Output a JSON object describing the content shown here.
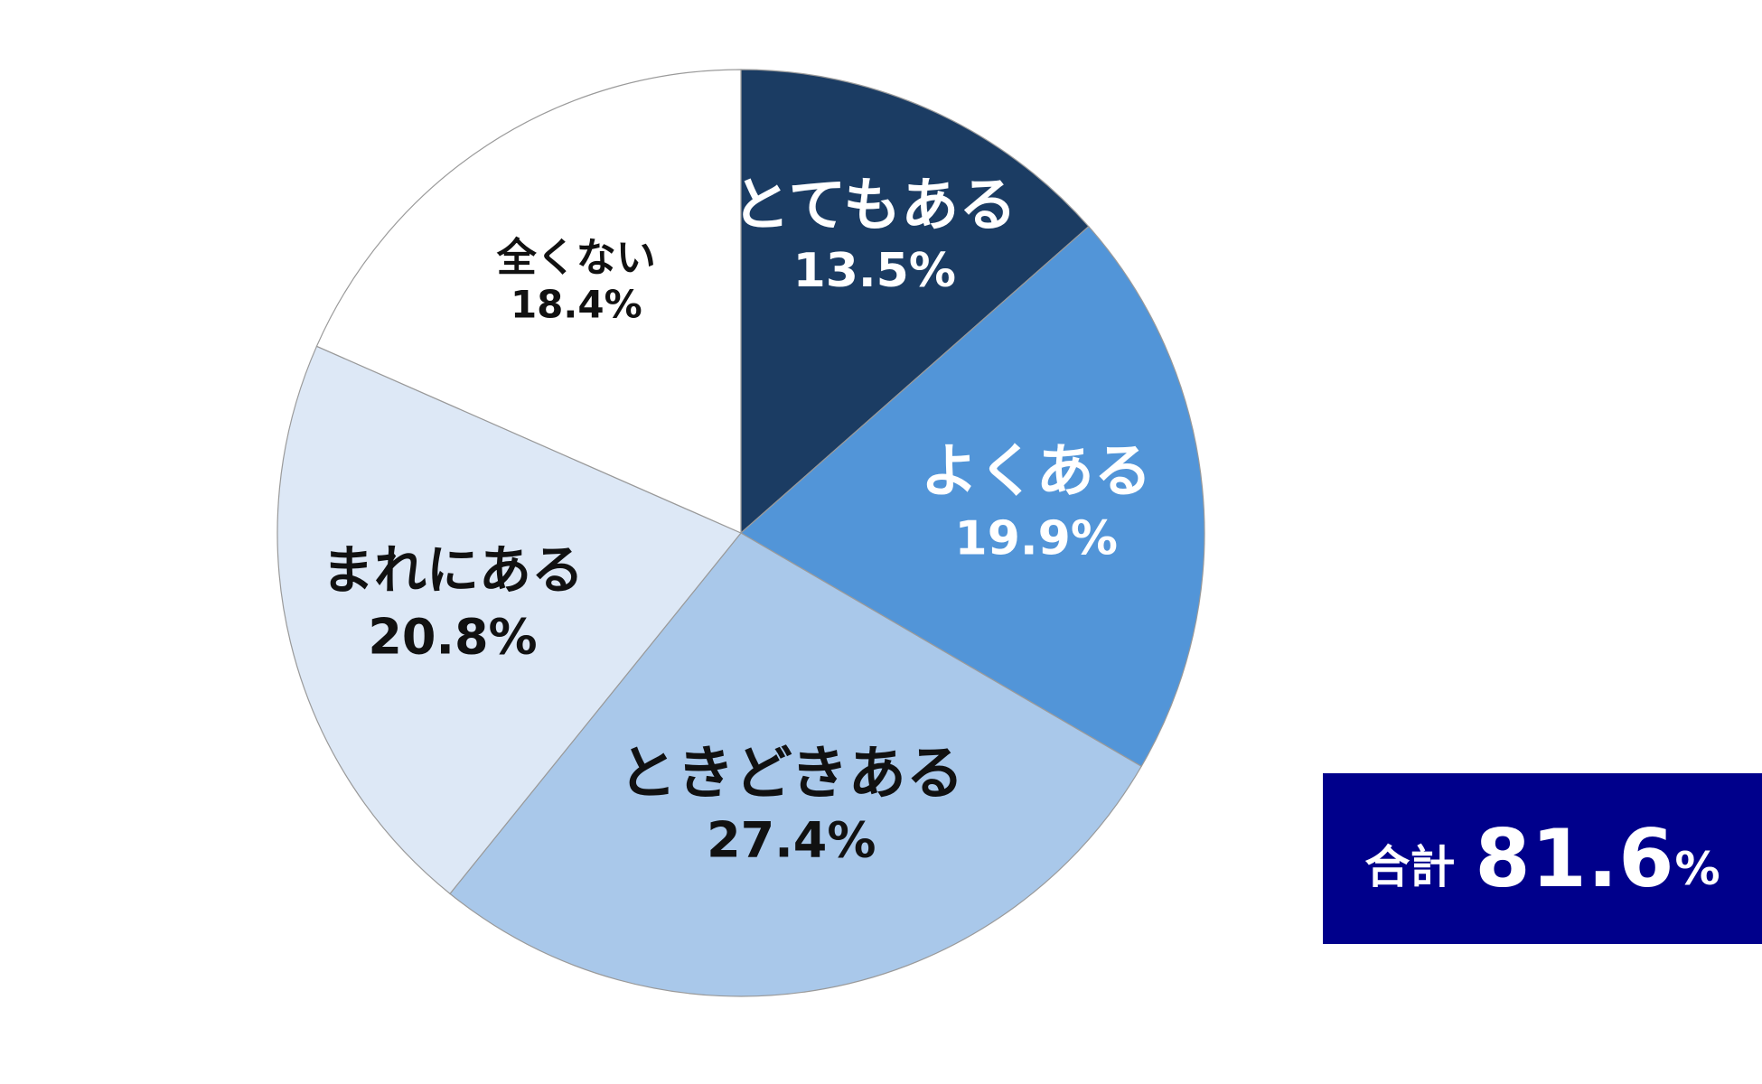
{
  "chart_data": {
    "type": "pie",
    "categories": [
      "とてもある",
      "よくある",
      "ときどきある",
      "まれにある",
      "全くない"
    ],
    "values": [
      13.5,
      19.9,
      27.4,
      20.8,
      18.4
    ],
    "value_labels": [
      "13.5%",
      "19.9%",
      "27.4%",
      "20.8%",
      "18.4%"
    ],
    "colors": [
      "#1b3c63",
      "#5295d8",
      "#a9c8ea",
      "#dde8f6",
      "#ffffff"
    ],
    "label_colors": [
      "#ffffff",
      "#ffffff",
      "#111111",
      "#111111",
      "#111111"
    ],
    "start_angle": "12 o'clock",
    "direction": "clockwise"
  },
  "total": {
    "label": "合計",
    "value": "81.6",
    "unit": "%"
  }
}
